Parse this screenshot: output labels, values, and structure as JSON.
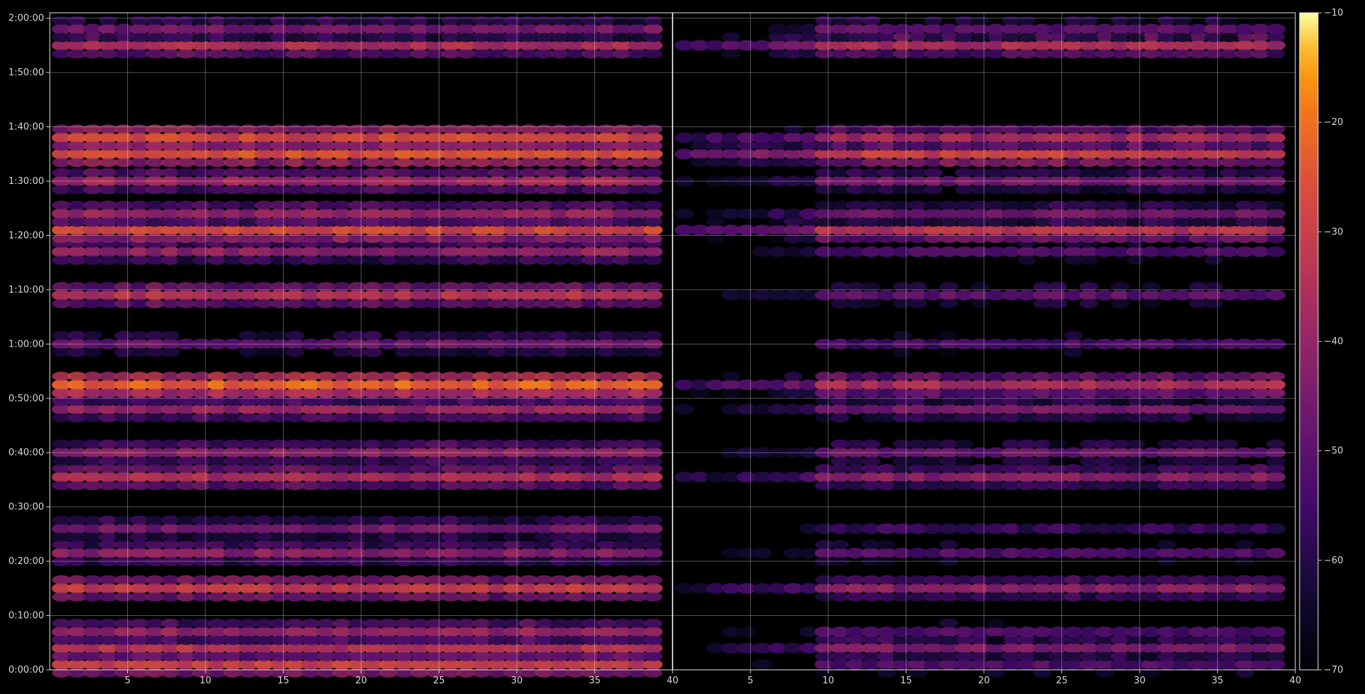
{
  "chart_data": {
    "type": "heatmap",
    "title": "",
    "xlabel": "",
    "ylabel": "",
    "grid": true,
    "panels": [
      {
        "name": "left",
        "x_range": [
          1,
          40
        ],
        "x_ticks": [
          5,
          10,
          15,
          20,
          25,
          30,
          35,
          40
        ],
        "x_tick_labels": [
          "5",
          "10",
          "15",
          "20",
          "25",
          "30",
          "35",
          "40"
        ]
      },
      {
        "name": "right",
        "x_range": [
          1,
          40
        ],
        "x_ticks": [
          5,
          10,
          15,
          20,
          25,
          30,
          35,
          40
        ],
        "x_tick_labels": [
          "5",
          "10",
          "15",
          "20",
          "25",
          "30",
          "35",
          "40"
        ]
      }
    ],
    "y_range_seconds": [
      0,
      7260
    ],
    "y_ticks_seconds": [
      0,
      600,
      1200,
      1800,
      2400,
      3000,
      3600,
      4200,
      4800,
      5400,
      6000,
      6600,
      7200
    ],
    "y_tick_labels": [
      "0:00:00",
      "0:10:00",
      "0:20:00",
      "0:30:00",
      "0:40:00",
      "0:50:00",
      "1:00:00",
      "1:10:00",
      "1:20:00",
      "1:30:00",
      "1:40:00",
      "1:50:00",
      "2:00:00"
    ],
    "colorbar": {
      "colormap": "inferno",
      "range": [
        -70,
        -10
      ],
      "ticks": [
        -70,
        -60,
        -50,
        -40,
        -30,
        -20,
        -10
      ],
      "tick_labels": [
        "−70",
        "−60",
        "−50",
        "−40",
        "−30",
        "−20",
        "−10"
      ]
    },
    "bands": [
      {
        "t": 60,
        "left": -30,
        "right": -52
      },
      {
        "t": 240,
        "left": -34,
        "right": -45
      },
      {
        "t": 420,
        "left": -40,
        "right": -52
      },
      {
        "t": 900,
        "left": -31,
        "right": -42
      },
      {
        "t": 1290,
        "left": -42,
        "right": -52
      },
      {
        "t": 1560,
        "left": -46,
        "right": -57
      },
      {
        "t": 2130,
        "left": -36,
        "right": -42
      },
      {
        "t": 2400,
        "left": -42,
        "right": -48
      },
      {
        "t": 2880,
        "left": -40,
        "right": -46
      },
      {
        "t": 3060,
        "left": -40,
        "right": -50
      },
      {
        "t": 3150,
        "left": -22,
        "right": -36
      },
      {
        "t": 3600,
        "left": -48,
        "right": -54
      },
      {
        "t": 4140,
        "left": -34,
        "right": -50
      },
      {
        "t": 4620,
        "left": -41,
        "right": -53
      },
      {
        "t": 4860,
        "left": -28,
        "right": -34
      },
      {
        "t": 5040,
        "left": -40,
        "right": -46
      },
      {
        "t": 5400,
        "left": -38,
        "right": -46
      },
      {
        "t": 5700,
        "left": -26,
        "right": -30
      },
      {
        "t": 5880,
        "left": -28,
        "right": -38
      },
      {
        "t": 6900,
        "left": -36,
        "right": -36
      },
      {
        "t": 7080,
        "left": -46,
        "right": -50
      }
    ]
  }
}
